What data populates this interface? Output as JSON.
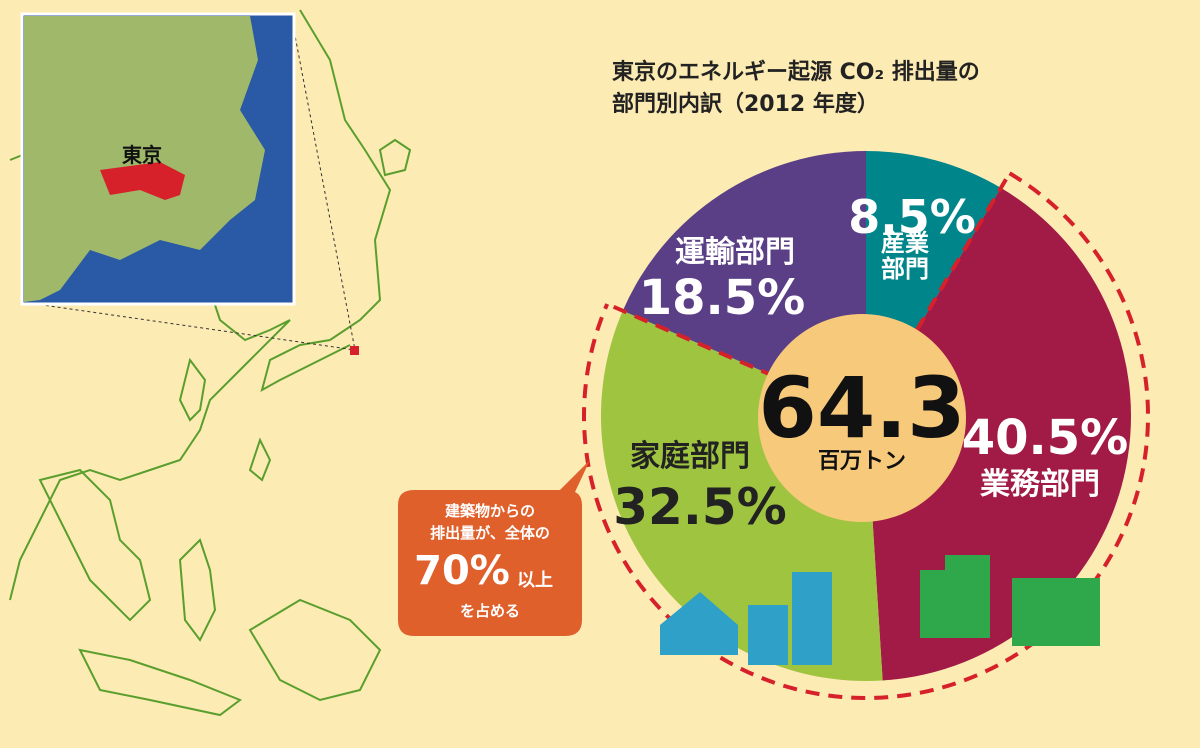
{
  "chart_data": {
    "type": "pie",
    "title": [
      "東京のエネルギー起源 CO₂ 排出量の",
      "部門別内訳（2012 年度）"
    ],
    "categories": [
      "産業部門",
      "業務部門",
      "家庭部門",
      "運輸部門"
    ],
    "values": [
      8.5,
      40.5,
      32.5,
      18.5
    ],
    "value_labels": [
      "8.5%",
      "40.5%",
      "32.5%",
      "18.5%"
    ],
    "colors": [
      "#00868a",
      "#a21a46",
      "#9fc440",
      "#5b3f86"
    ],
    "total": 64.3,
    "total_unit": "百万トン",
    "map_label": "東京",
    "callout": [
      "建築物からの",
      "排出量が、全体の",
      "70%",
      "以上",
      "を占める"
    ]
  }
}
